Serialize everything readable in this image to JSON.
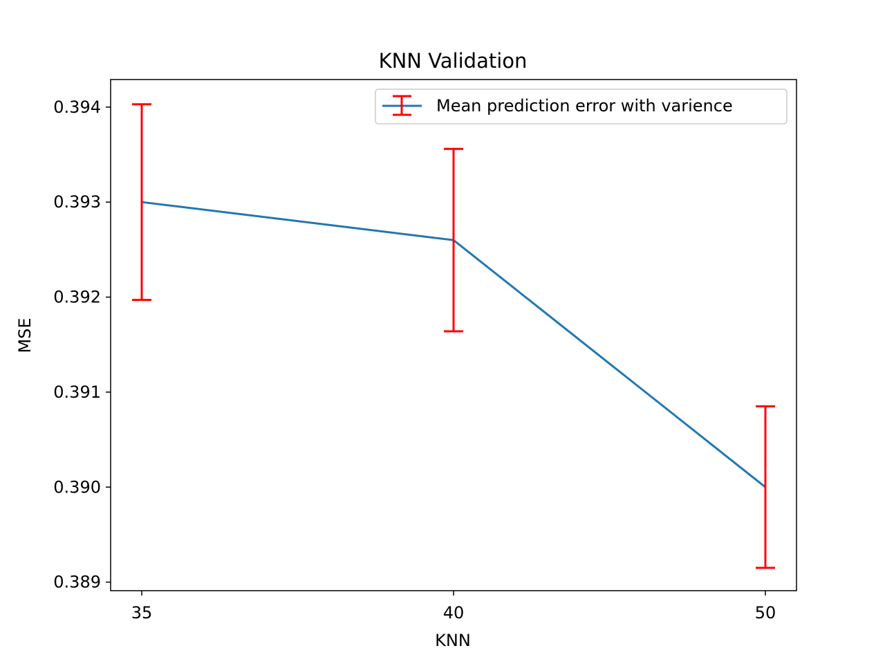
{
  "chart_data": {
    "type": "line",
    "title": "KNN Validation",
    "xlabel": "KNN",
    "ylabel": "MSE",
    "categories": [
      "35",
      "40",
      "50"
    ],
    "x_ticks": [
      "35",
      "40",
      "50"
    ],
    "y_ticks": [
      "0.389",
      "0.390",
      "0.391",
      "0.392",
      "0.393",
      "0.394"
    ],
    "y_tick_values": [
      0.389,
      0.39,
      0.391,
      0.392,
      0.393,
      0.394
    ],
    "ylim": [
      0.38891,
      0.39429
    ],
    "grid": false,
    "legend_position": "upper right",
    "series": [
      {
        "name": "Mean prediction error with varience",
        "values": [
          0.393,
          0.3926,
          0.39
        ],
        "errors": [
          0.00103,
          0.00096,
          0.00085
        ],
        "line_color": "#1f77b4",
        "error_color": "#ff0000"
      }
    ]
  }
}
